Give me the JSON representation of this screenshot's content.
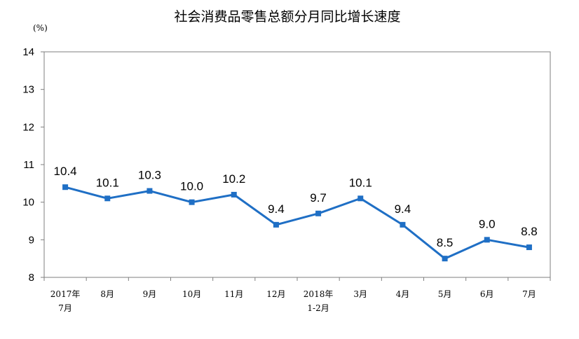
{
  "chart_data": {
    "type": "line",
    "title": "社会消费品零售总额分月同比增长速度",
    "ylabel": "(%)",
    "xlabel": "",
    "ylim": [
      8,
      14
    ],
    "yticks": [
      "14",
      "13",
      "12",
      "11",
      "10",
      "9",
      "8"
    ],
    "grid": false,
    "legend": "none",
    "color": "#1F6FC5",
    "categories": [
      [
        "2017年",
        "7月"
      ],
      [
        "8月"
      ],
      [
        "9月"
      ],
      [
        "10月"
      ],
      [
        "11月"
      ],
      [
        "12月"
      ],
      [
        "2018年",
        "1-2月"
      ],
      [
        "3月"
      ],
      [
        "4月"
      ],
      [
        "5月"
      ],
      [
        "6月"
      ],
      [
        "7月"
      ]
    ],
    "series": [
      {
        "values": [
          10.4,
          10.1,
          10.3,
          10.0,
          10.2,
          9.4,
          9.7,
          10.1,
          9.4,
          8.5,
          9.0,
          8.8
        ],
        "labels": [
          "10.4",
          "10.1",
          "10.3",
          "10.0",
          "10.2",
          "9.4",
          "9.7",
          "10.1",
          "9.4",
          "8.5",
          "9.0",
          "8.8"
        ]
      }
    ]
  }
}
